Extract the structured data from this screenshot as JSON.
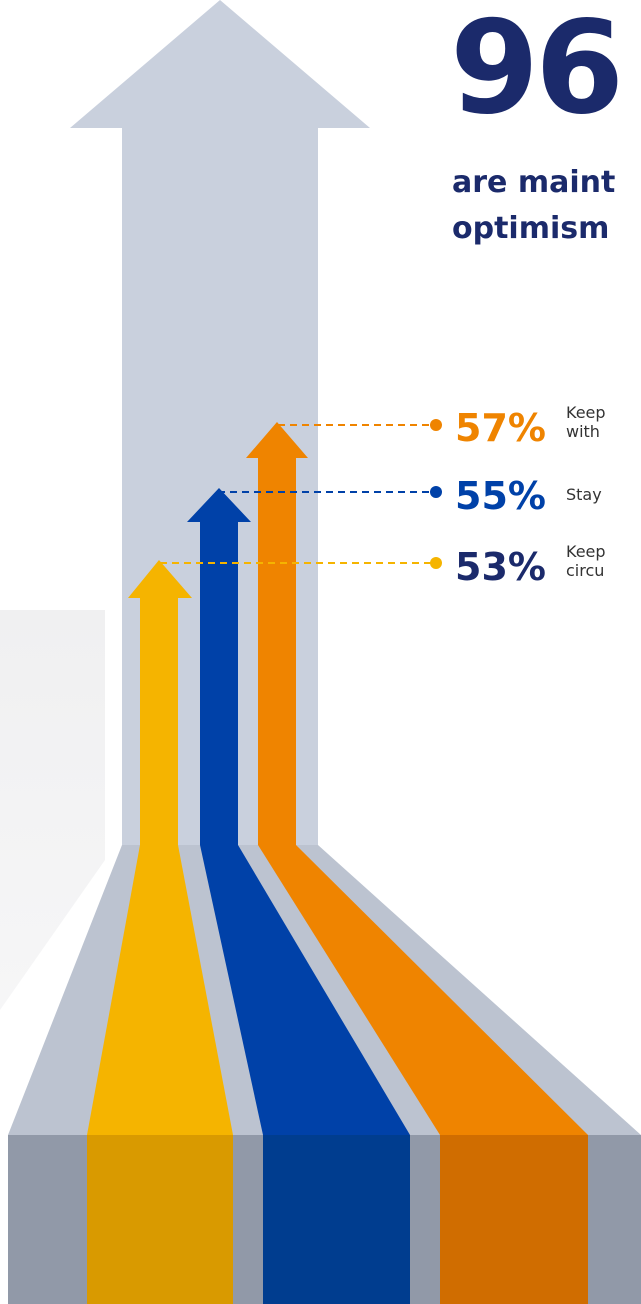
{
  "headline": {
    "number": "96",
    "lines": [
      "are maint",
      "optimism"
    ]
  },
  "items": [
    {
      "percent": "57%",
      "lines": [
        "Keep",
        "with"
      ]
    },
    {
      "percent": "55%",
      "lines": [
        "Stay"
      ]
    },
    {
      "percent": "53%",
      "lines": [
        "Keep",
        "circu"
      ]
    }
  ]
}
